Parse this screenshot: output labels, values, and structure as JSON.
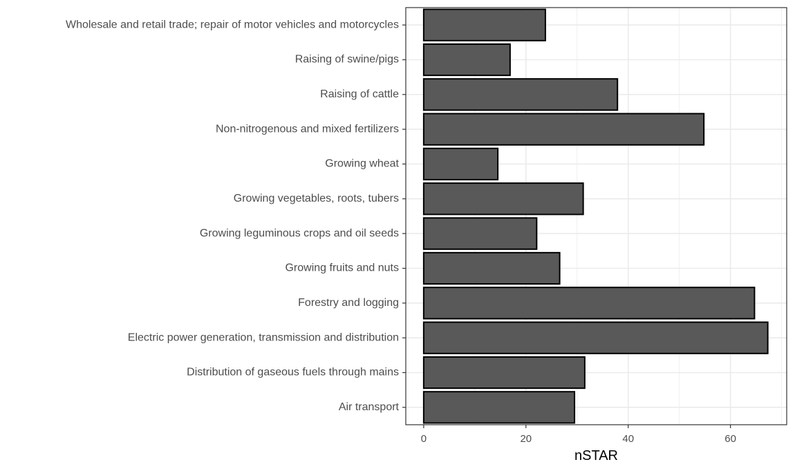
{
  "chart_data": {
    "type": "bar",
    "orientation": "horizontal",
    "title": "",
    "xlabel": "nSTAR",
    "ylabel": "",
    "xlim": [
      -3.5,
      71
    ],
    "xticks": [
      0,
      20,
      40,
      60
    ],
    "grid": true,
    "legend": "none",
    "categories": [
      "Wholesale and retail trade; repair of motor vehicles and motorcycles",
      "Raising of swine/pigs",
      "Raising of cattle",
      "Non-nitrogenous and mixed fertilizers",
      "Growing wheat",
      "Growing vegetables, roots, tubers",
      "Growing leguminous crops and oil seeds",
      "Growing fruits and nuts",
      "Forestry and logging",
      "Electric power generation, transmission and distribution",
      "Distribution of gaseous fuels through mains",
      "Air transport"
    ],
    "values": [
      23.8,
      16.9,
      37.9,
      54.8,
      14.5,
      31.2,
      22.1,
      26.6,
      64.7,
      67.3,
      31.5,
      29.5
    ],
    "colors": {
      "bar_fill": "#595959",
      "bar_stroke": "#000000",
      "grid": "#ebebeb",
      "panel_border": "#333333"
    }
  }
}
